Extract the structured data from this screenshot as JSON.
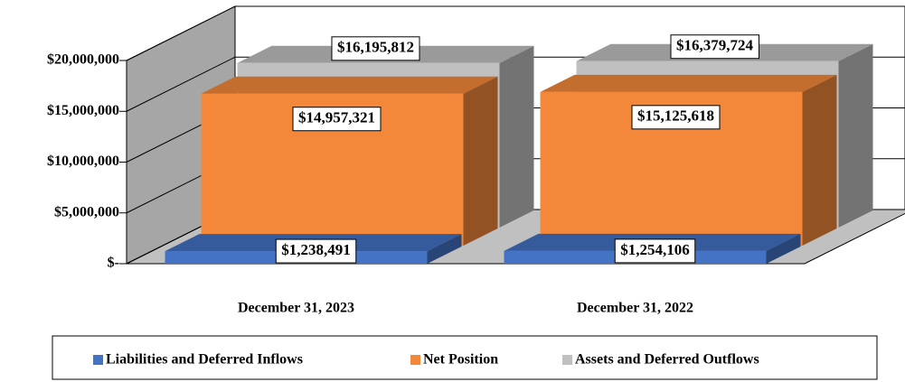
{
  "chart_data": {
    "type": "bar3d",
    "categories": [
      "December 31, 2023",
      "December 31, 2022"
    ],
    "series": [
      {
        "name": "Liabilities and Deferred Inflows",
        "color": "#4472c4",
        "values": [
          1238491,
          1254106
        ],
        "value_labels": [
          "$1,238,491",
          "$1,254,106"
        ]
      },
      {
        "name": "Net Position",
        "color": "#f4883a",
        "values": [
          14957321,
          15125618
        ],
        "value_labels": [
          "$14,957,321",
          "$15,125,618"
        ]
      },
      {
        "name": "Assets and Deferred Outflows",
        "color": "#c0c0c0",
        "values": [
          16195812,
          16379724
        ],
        "value_labels": [
          "$16,195,812",
          "$16,379,724"
        ]
      }
    ],
    "ylim": [
      0,
      20000000
    ],
    "yticks": [
      {
        "value": 0,
        "label": "$-"
      },
      {
        "value": 5000000,
        "label": "$5,000,000"
      },
      {
        "value": 10000000,
        "label": "$10,000,000"
      },
      {
        "value": 15000000,
        "label": "$15,000,000"
      },
      {
        "value": 20000000,
        "label": "$20,000,000"
      }
    ],
    "grid": true,
    "legend": "bottom"
  }
}
